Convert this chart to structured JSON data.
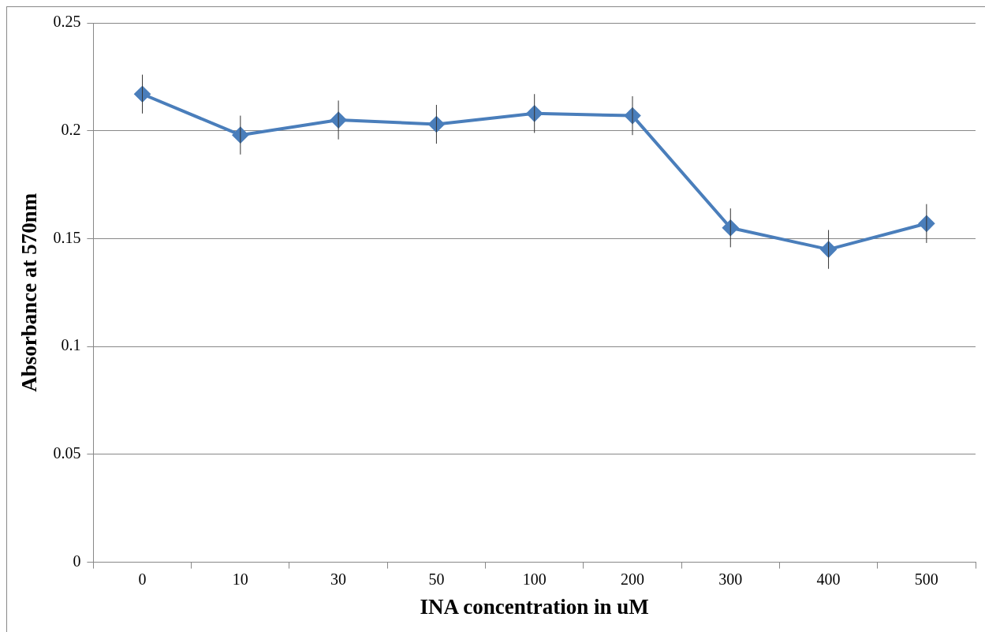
{
  "chart_data": {
    "type": "line",
    "xlabel": "INA concentration in uM",
    "ylabel": "Absorbance at 570nm",
    "categories": [
      "0",
      "10",
      "30",
      "50",
      "100",
      "200",
      "300",
      "400",
      "500"
    ],
    "values": [
      0.217,
      0.198,
      0.205,
      0.203,
      0.208,
      0.207,
      0.155,
      0.145,
      0.157
    ],
    "errors": [
      0.009,
      0.009,
      0.009,
      0.009,
      0.009,
      0.009,
      0.009,
      0.009,
      0.009
    ],
    "color": "#4a7ebb",
    "marker": "diamond",
    "line_style": "solid",
    "ylim": [
      0,
      0.25
    ],
    "yticks": [
      0,
      0.05,
      0.1,
      0.15,
      0.2,
      0.25
    ],
    "grid": "y",
    "legend": false
  }
}
